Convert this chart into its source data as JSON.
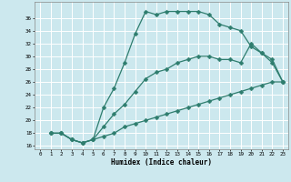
{
  "xlabel": "Humidex (Indice chaleur)",
  "bg_color": "#cce8ee",
  "grid_color": "#ffffff",
  "line_color": "#2e7d6e",
  "xlim": [
    -0.5,
    23.5
  ],
  "ylim": [
    15.5,
    38.5
  ],
  "yticks": [
    16,
    18,
    20,
    22,
    24,
    26,
    28,
    30,
    32,
    34,
    36
  ],
  "xticks": [
    0,
    1,
    2,
    3,
    4,
    5,
    6,
    7,
    8,
    9,
    10,
    11,
    12,
    13,
    14,
    15,
    16,
    17,
    18,
    19,
    20,
    21,
    22,
    23
  ],
  "series1_x": [
    1,
    2,
    3,
    4,
    5,
    6,
    7,
    8,
    9,
    10,
    11,
    12,
    13,
    14,
    15,
    16,
    17,
    18,
    19,
    20,
    21,
    22,
    23
  ],
  "series1_y": [
    18.0,
    18.0,
    17.0,
    16.5,
    17.0,
    22.0,
    25.0,
    29.0,
    33.5,
    37.0,
    36.5,
    37.0,
    37.0,
    37.0,
    37.0,
    36.5,
    35.0,
    34.5,
    34.0,
    31.5,
    30.5,
    29.0,
    26.0
  ],
  "series2_x": [
    1,
    2,
    3,
    4,
    5,
    6,
    7,
    8,
    9,
    10,
    11,
    12,
    13,
    14,
    15,
    16,
    17,
    18,
    19,
    20,
    21,
    22,
    23
  ],
  "series2_y": [
    18.0,
    18.0,
    17.0,
    16.5,
    17.0,
    17.5,
    18.0,
    19.0,
    19.5,
    20.0,
    20.5,
    21.0,
    21.5,
    22.0,
    22.5,
    23.0,
    23.5,
    24.0,
    24.5,
    25.0,
    25.5,
    26.0,
    26.0
  ],
  "series3_x": [
    1,
    2,
    3,
    4,
    5,
    6,
    7,
    8,
    9,
    10,
    11,
    12,
    13,
    14,
    15,
    16,
    17,
    18,
    19,
    20,
    21,
    22,
    23
  ],
  "series3_y": [
    18.0,
    18.0,
    17.0,
    16.5,
    17.0,
    19.0,
    21.0,
    22.5,
    24.5,
    26.5,
    27.5,
    28.0,
    29.0,
    29.5,
    30.0,
    30.0,
    29.5,
    29.5,
    29.0,
    32.0,
    30.5,
    29.5,
    26.0
  ]
}
